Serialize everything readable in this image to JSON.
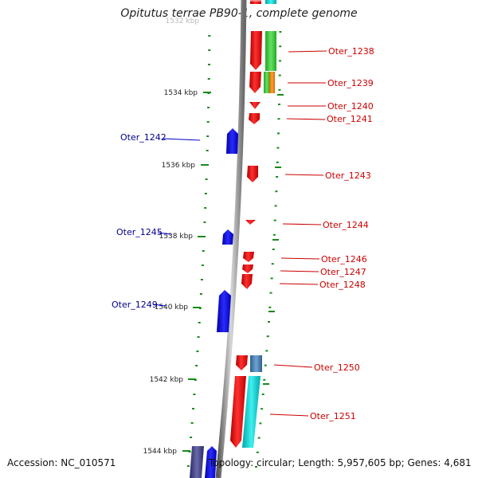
{
  "title": "Opitutus terrae PB90-1, complete genome",
  "footer": {
    "accession": "Accession: NC_010571",
    "summary": "Topology: circular; Length: 5,957,605 bp; Genes: 4,681"
  },
  "scale": {
    "unit": "kbp",
    "labels": [
      "1532 kbp",
      "1534 kbp",
      "1536 kbp",
      "1538 kbp",
      "1540 kbp",
      "1542 kbp",
      "1544 kbp"
    ]
  },
  "colors": {
    "forward_gene": "#ff0000",
    "reverse_gene": "#0000ff",
    "forward_label": "#cc0000",
    "reverse_label": "#00008b",
    "tick": "#1a8a1a",
    "backbone": "#8c8c8c",
    "cds_green": "#33cc33",
    "cds_orange": "#ff8800",
    "cds_cyan": "#00cccc",
    "cds_steel": "#4682b4"
  },
  "genes": {
    "forward": [
      "Oter_1238",
      "Oter_1239",
      "Oter_1240",
      "Oter_1241",
      "Oter_1243",
      "Oter_1244",
      "Oter_1246",
      "Oter_1247",
      "Oter_1248",
      "Oter_1250",
      "Oter_1251"
    ],
    "reverse": [
      "Oter_1242",
      "Oter_1245",
      "Oter_1249"
    ]
  }
}
